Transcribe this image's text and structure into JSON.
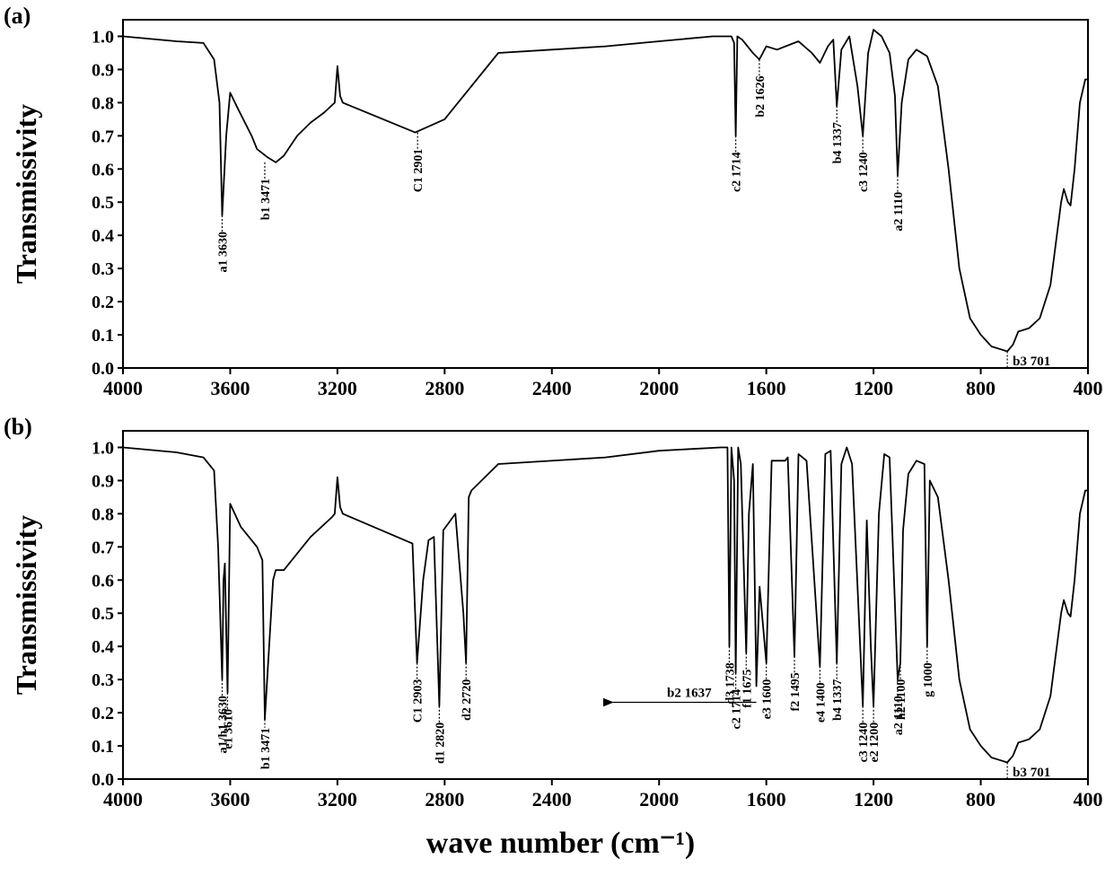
{
  "chart_data": [
    {
      "type": "line",
      "panel_label": "(a)",
      "y_label": "Transmissivity",
      "color": "#000000",
      "xlim": [
        4000,
        400
      ],
      "ylim": [
        0,
        1.05
      ],
      "xticks": [
        4000,
        3600,
        3200,
        2800,
        2400,
        2000,
        1600,
        1200,
        800,
        400
      ],
      "yticks": [
        {
          "value": 0,
          "label": "0.0"
        },
        0.1,
        0.2,
        0.3,
        0.4,
        0.5,
        0.6,
        0.7,
        0.8,
        0.9,
        {
          "value": 1,
          "label": "1.0"
        }
      ],
      "x": [
        4000,
        3800,
        3700,
        3660,
        3640,
        3630,
        3615,
        3600,
        3570,
        3520,
        3500,
        3460,
        3430,
        3400,
        3350,
        3300,
        3250,
        3210,
        3200,
        3190,
        3180,
        2910,
        2800,
        2600,
        2400,
        2200,
        2000,
        1800,
        1730,
        1720,
        1714,
        1708,
        1690,
        1650,
        1626,
        1600,
        1560,
        1480,
        1430,
        1400,
        1370,
        1350,
        1337,
        1320,
        1290,
        1260,
        1240,
        1220,
        1200,
        1170,
        1140,
        1120,
        1110,
        1095,
        1070,
        1040,
        1000,
        960,
        920,
        880,
        840,
        800,
        760,
        720,
        701,
        680,
        660,
        620,
        580,
        540,
        500,
        490,
        475,
        465,
        450,
        430,
        410,
        400
      ],
      "values": [
        1.0,
        0.985,
        0.98,
        0.93,
        0.8,
        0.46,
        0.7,
        0.83,
        0.78,
        0.7,
        0.66,
        0.635,
        0.62,
        0.64,
        0.7,
        0.74,
        0.77,
        0.8,
        0.91,
        0.82,
        0.8,
        0.71,
        0.75,
        0.95,
        0.96,
        0.97,
        0.985,
        1.0,
        1.0,
        0.98,
        0.7,
        1.0,
        0.99,
        0.95,
        0.93,
        0.97,
        0.96,
        0.985,
        0.95,
        0.92,
        0.97,
        0.99,
        0.79,
        0.96,
        1.0,
        0.85,
        0.7,
        0.95,
        1.02,
        1.0,
        0.95,
        0.82,
        0.58,
        0.8,
        0.93,
        0.96,
        0.94,
        0.85,
        0.6,
        0.3,
        0.15,
        0.1,
        0.065,
        0.055,
        0.05,
        0.07,
        0.11,
        0.12,
        0.15,
        0.25,
        0.5,
        0.54,
        0.5,
        0.49,
        0.6,
        0.8,
        0.87,
        0.87
      ],
      "annotations": [
        {
          "label": "a1 3630",
          "x": 3630,
          "y": 0.46
        },
        {
          "label": "b1 3471",
          "x": 3471,
          "y": 0.62
        },
        {
          "label": "C1 2901",
          "x": 2901,
          "y": 0.71
        },
        {
          "label": "c2 1714",
          "x": 1714,
          "y": 0.7
        },
        {
          "label": "b2 1626",
          "x": 1626,
          "y": 0.93
        },
        {
          "label": "b4 1337",
          "x": 1337,
          "y": 0.79
        },
        {
          "label": "c3 1240",
          "x": 1240,
          "y": 0.7
        },
        {
          "label": "a2 1110",
          "x": 1110,
          "y": 0.58
        },
        {
          "label": "b3 701",
          "x": 701,
          "y": 0.05,
          "vertical": false
        }
      ]
    },
    {
      "type": "line",
      "panel_label": "(b)",
      "y_label": "Transmissivity",
      "x_label": "wave number (cm⁻¹)",
      "color": "#000000",
      "xlim": [
        4000,
        400
      ],
      "ylim": [
        0,
        1.05
      ],
      "xticks": [
        4000,
        3600,
        3200,
        2800,
        2400,
        2000,
        1600,
        1200,
        800,
        400
      ],
      "yticks": [
        {
          "value": 0,
          "label": "0.0"
        },
        0.1,
        0.2,
        0.3,
        0.4,
        0.5,
        0.6,
        0.7,
        0.8,
        0.9,
        {
          "value": 1,
          "label": "1.0"
        }
      ],
      "x": [
        4000,
        3800,
        3700,
        3660,
        3645,
        3630,
        3625,
        3620,
        3615,
        3610,
        3600,
        3560,
        3500,
        3480,
        3471,
        3440,
        3430,
        3400,
        3300,
        3220,
        3210,
        3200,
        3190,
        3180,
        2920,
        2903,
        2880,
        2860,
        2840,
        2820,
        2805,
        2760,
        2730,
        2720,
        2710,
        2700,
        2600,
        2200,
        2000,
        1770,
        1745,
        1738,
        1730,
        1720,
        1714,
        1705,
        1695,
        1675,
        1665,
        1650,
        1637,
        1625,
        1600,
        1580,
        1530,
        1520,
        1495,
        1480,
        1450,
        1400,
        1380,
        1360,
        1337,
        1320,
        1300,
        1280,
        1240,
        1225,
        1210,
        1200,
        1180,
        1160,
        1140,
        1110,
        1100,
        1090,
        1070,
        1040,
        1010,
        1000,
        990,
        960,
        920,
        880,
        840,
        800,
        760,
        720,
        701,
        680,
        660,
        620,
        580,
        540,
        500,
        490,
        475,
        465,
        450,
        430,
        410,
        400
      ],
      "values": [
        1.0,
        0.985,
        0.97,
        0.93,
        0.7,
        0.3,
        0.6,
        0.65,
        0.45,
        0.26,
        0.83,
        0.76,
        0.7,
        0.66,
        0.18,
        0.6,
        0.63,
        0.63,
        0.73,
        0.79,
        0.8,
        0.91,
        0.82,
        0.8,
        0.71,
        0.35,
        0.6,
        0.72,
        0.73,
        0.22,
        0.75,
        0.8,
        0.5,
        0.35,
        0.85,
        0.87,
        0.95,
        0.97,
        0.99,
        1.0,
        1.0,
        0.4,
        1.0,
        0.9,
        0.32,
        1.0,
        0.95,
        0.38,
        0.8,
        0.95,
        0.28,
        0.58,
        0.35,
        0.96,
        0.96,
        0.97,
        0.37,
        0.98,
        0.96,
        0.34,
        0.98,
        0.99,
        0.35,
        0.95,
        1.0,
        0.95,
        0.22,
        0.78,
        0.4,
        0.22,
        0.8,
        0.98,
        0.97,
        0.3,
        0.35,
        0.75,
        0.92,
        0.96,
        0.95,
        0.4,
        0.9,
        0.85,
        0.6,
        0.3,
        0.15,
        0.1,
        0.065,
        0.055,
        0.05,
        0.07,
        0.11,
        0.12,
        0.15,
        0.25,
        0.5,
        0.54,
        0.5,
        0.49,
        0.6,
        0.8,
        0.87,
        0.87
      ],
      "annotations": [
        {
          "label": "a1/h1 3630",
          "x": 3630,
          "y": 0.3
        },
        {
          "label": "e1 3610",
          "x": 3610,
          "y": 0.26
        },
        {
          "label": "b1 3471",
          "x": 3471,
          "y": 0.18
        },
        {
          "label": "C1 2903",
          "x": 2903,
          "y": 0.35
        },
        {
          "label": "d1 2820",
          "x": 2820,
          "y": 0.22
        },
        {
          "label": "d2 2720",
          "x": 2720,
          "y": 0.35
        },
        {
          "label": "d3 1738",
          "x": 1738,
          "y": 0.4
        },
        {
          "label": "c2 1714",
          "x": 1714,
          "y": 0.32
        },
        {
          "label": "f1 1675",
          "x": 1675,
          "y": 0.38
        },
        {
          "label": "b2 1637",
          "x": 1637,
          "y": 0.28,
          "vertical": false,
          "arrow": true
        },
        {
          "label": "e3 1600",
          "x": 1600,
          "y": 0.35
        },
        {
          "label": "f2 1495",
          "x": 1495,
          "y": 0.37
        },
        {
          "label": "e4 1400",
          "x": 1400,
          "y": 0.34
        },
        {
          "label": "b4 1337",
          "x": 1337,
          "y": 0.35
        },
        {
          "label": "c3 1240",
          "x": 1240,
          "y": 0.22
        },
        {
          "label": "e2 1200",
          "x": 1200,
          "y": 0.22
        },
        {
          "label": "a2 1110",
          "x": 1110,
          "y": 0.3
        },
        {
          "label": "h2 1100",
          "x": 1100,
          "y": 0.35
        },
        {
          "label": "g 1000",
          "x": 1000,
          "y": 0.4
        },
        {
          "label": "b3 701",
          "x": 701,
          "y": 0.05,
          "vertical": false
        }
      ]
    }
  ]
}
